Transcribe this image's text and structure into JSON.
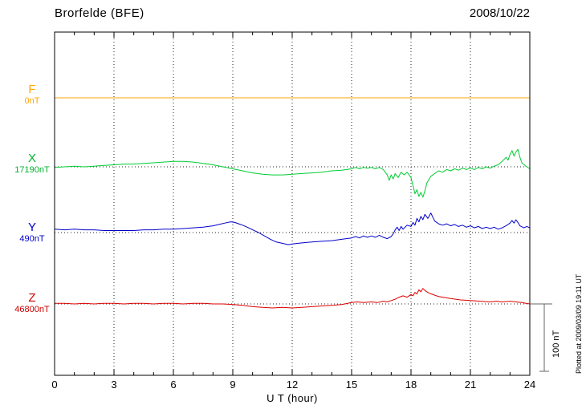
{
  "header": {
    "station": "Brorfelde (BFE)",
    "date": "2008/10/22"
  },
  "footer_note": "Plotted at 2009/03/09 19:11 UT",
  "chart_data": {
    "type": "line",
    "title": "Brorfelde (BFE) magnetogram 2008/10/22",
    "xlabel": "U T (hour)",
    "x_range": [
      0,
      24
    ],
    "x_ticks": [
      "0",
      "3",
      "6",
      "9",
      "12",
      "15",
      "18",
      "21",
      "24"
    ],
    "grid": "dotted vertical every 3 h, dotted horizontal baseline per component",
    "legend_position": "left axis labels",
    "scale_bar": {
      "label": "100 nT",
      "nT": 100
    },
    "series": [
      {
        "name": "F",
        "base_label": "0nT",
        "color": "#FFA500",
        "points": [
          [
            0,
            0
          ],
          [
            24,
            0
          ]
        ]
      },
      {
        "name": "X",
        "base_label": "17190nT",
        "color": "#00CC33",
        "points": [
          [
            0,
            -1
          ],
          [
            0.5,
            0
          ],
          [
            1,
            1
          ],
          [
            1.5,
            0
          ],
          [
            2,
            1
          ],
          [
            2.5,
            2
          ],
          [
            3,
            3
          ],
          [
            3.5,
            4
          ],
          [
            4,
            4
          ],
          [
            4.5,
            5
          ],
          [
            5,
            6
          ],
          [
            5.5,
            7
          ],
          [
            6,
            8
          ],
          [
            6.5,
            8
          ],
          [
            7,
            7
          ],
          [
            7.5,
            5
          ],
          [
            8,
            3
          ],
          [
            8.5,
            0
          ],
          [
            9,
            -3
          ],
          [
            9.5,
            -6
          ],
          [
            10,
            -9
          ],
          [
            10.5,
            -11
          ],
          [
            11,
            -12
          ],
          [
            11.5,
            -12
          ],
          [
            12,
            -11
          ],
          [
            12.5,
            -10
          ],
          [
            13,
            -9
          ],
          [
            13.5,
            -8
          ],
          [
            14,
            -6
          ],
          [
            14.5,
            -5
          ],
          [
            15,
            -3
          ],
          [
            15.2,
            -1
          ],
          [
            15.4,
            -3
          ],
          [
            15.6,
            -1
          ],
          [
            15.8,
            -2
          ],
          [
            16,
            -1
          ],
          [
            16.2,
            -3
          ],
          [
            16.4,
            -1
          ],
          [
            16.6,
            -4
          ],
          [
            16.8,
            -12
          ],
          [
            16.9,
            -20
          ],
          [
            17,
            -12
          ],
          [
            17.1,
            -18
          ],
          [
            17.2,
            -10
          ],
          [
            17.35,
            -16
          ],
          [
            17.5,
            -8
          ],
          [
            17.65,
            -12
          ],
          [
            17.8,
            -8
          ],
          [
            18,
            -16
          ],
          [
            18.1,
            -28
          ],
          [
            18.2,
            -40
          ],
          [
            18.3,
            -34
          ],
          [
            18.4,
            -44
          ],
          [
            18.5,
            -38
          ],
          [
            18.6,
            -45
          ],
          [
            18.7,
            -36
          ],
          [
            18.8,
            -24
          ],
          [
            19,
            -14
          ],
          [
            19.2,
            -10
          ],
          [
            19.4,
            -6
          ],
          [
            19.6,
            -8
          ],
          [
            19.8,
            -4
          ],
          [
            20,
            -6
          ],
          [
            20.2,
            -3
          ],
          [
            20.4,
            -5
          ],
          [
            20.6,
            -2
          ],
          [
            20.8,
            -4
          ],
          [
            21,
            -2
          ],
          [
            21.2,
            -4
          ],
          [
            21.4,
            -1
          ],
          [
            21.6,
            -3
          ],
          [
            21.8,
            0
          ],
          [
            22,
            -2
          ],
          [
            22.2,
            1
          ],
          [
            22.4,
            3
          ],
          [
            22.6,
            8
          ],
          [
            22.8,
            14
          ],
          [
            22.9,
            10
          ],
          [
            23,
            18
          ],
          [
            23.1,
            24
          ],
          [
            23.2,
            16
          ],
          [
            23.3,
            22
          ],
          [
            23.4,
            26
          ],
          [
            23.5,
            14
          ],
          [
            23.6,
            6
          ],
          [
            23.8,
            1
          ],
          [
            24,
            -3
          ]
        ]
      },
      {
        "name": "Y",
        "base_label": "490nT",
        "color": "#0000CC",
        "points": [
          [
            0,
            5
          ],
          [
            0.5,
            4
          ],
          [
            1,
            5
          ],
          [
            1.5,
            4
          ],
          [
            2,
            4
          ],
          [
            2.5,
            3
          ],
          [
            3,
            3
          ],
          [
            3.5,
            3
          ],
          [
            4,
            3
          ],
          [
            4.5,
            4
          ],
          [
            5,
            4
          ],
          [
            5.5,
            5
          ],
          [
            6,
            5
          ],
          [
            6.5,
            6
          ],
          [
            7,
            7
          ],
          [
            7.5,
            8
          ],
          [
            8,
            10
          ],
          [
            8.3,
            12
          ],
          [
            8.6,
            14
          ],
          [
            8.9,
            16
          ],
          [
            9.1,
            15
          ],
          [
            9.3,
            13
          ],
          [
            9.5,
            11
          ],
          [
            9.8,
            7
          ],
          [
            10,
            4
          ],
          [
            10.3,
            0
          ],
          [
            10.6,
            -5
          ],
          [
            10.9,
            -10
          ],
          [
            11.2,
            -14
          ],
          [
            11.5,
            -16
          ],
          [
            11.8,
            -18
          ],
          [
            12,
            -17
          ],
          [
            12.3,
            -16
          ],
          [
            12.6,
            -15
          ],
          [
            13,
            -14
          ],
          [
            13.5,
            -13
          ],
          [
            14,
            -12
          ],
          [
            14.5,
            -10
          ],
          [
            15,
            -8
          ],
          [
            15.2,
            -6
          ],
          [
            15.4,
            -8
          ],
          [
            15.6,
            -5
          ],
          [
            15.8,
            -7
          ],
          [
            16,
            -5
          ],
          [
            16.2,
            -7
          ],
          [
            16.4,
            -4
          ],
          [
            16.6,
            -7
          ],
          [
            16.8,
            -9
          ],
          [
            17,
            -6
          ],
          [
            17.1,
            -2
          ],
          [
            17.2,
            4
          ],
          [
            17.3,
            8
          ],
          [
            17.4,
            3
          ],
          [
            17.5,
            9
          ],
          [
            17.6,
            5
          ],
          [
            17.8,
            11
          ],
          [
            18,
            9
          ],
          [
            18.1,
            15
          ],
          [
            18.2,
            11
          ],
          [
            18.3,
            21
          ],
          [
            18.4,
            16
          ],
          [
            18.5,
            24
          ],
          [
            18.6,
            19
          ],
          [
            18.7,
            27
          ],
          [
            18.85,
            21
          ],
          [
            19,
            29
          ],
          [
            19.1,
            23
          ],
          [
            19.2,
            17
          ],
          [
            19.4,
            13
          ],
          [
            19.6,
            11
          ],
          [
            19.8,
            13
          ],
          [
            20,
            10
          ],
          [
            20.2,
            12
          ],
          [
            20.4,
            9
          ],
          [
            20.6,
            11
          ],
          [
            20.8,
            8
          ],
          [
            21,
            10
          ],
          [
            21.2,
            7
          ],
          [
            21.4,
            9
          ],
          [
            21.6,
            6
          ],
          [
            21.8,
            8
          ],
          [
            22,
            6
          ],
          [
            22.2,
            8
          ],
          [
            22.4,
            5
          ],
          [
            22.6,
            7
          ],
          [
            22.8,
            10
          ],
          [
            23,
            14
          ],
          [
            23.1,
            18
          ],
          [
            23.2,
            14
          ],
          [
            23.3,
            19
          ],
          [
            23.4,
            15
          ],
          [
            23.5,
            10
          ],
          [
            23.7,
            7
          ],
          [
            23.85,
            9
          ],
          [
            24,
            7
          ]
        ]
      },
      {
        "name": "Z",
        "base_label": "46800nT",
        "color": "#DD0000",
        "points": [
          [
            0,
            1
          ],
          [
            0.5,
            1
          ],
          [
            1,
            0
          ],
          [
            1.5,
            1
          ],
          [
            2,
            0
          ],
          [
            2.5,
            1
          ],
          [
            3,
            1
          ],
          [
            3.5,
            0
          ],
          [
            4,
            1
          ],
          [
            4.5,
            1
          ],
          [
            5,
            0
          ],
          [
            5.5,
            1
          ],
          [
            6,
            1
          ],
          [
            6.5,
            0
          ],
          [
            7,
            1
          ],
          [
            7.5,
            1
          ],
          [
            8,
            0
          ],
          [
            8.5,
            0
          ],
          [
            9,
            -1
          ],
          [
            9.5,
            -2
          ],
          [
            10,
            -4
          ],
          [
            10.5,
            -5
          ],
          [
            11,
            -6
          ],
          [
            11.5,
            -5
          ],
          [
            12,
            -6
          ],
          [
            12.5,
            -5
          ],
          [
            13,
            -4
          ],
          [
            13.5,
            -3
          ],
          [
            14,
            -2
          ],
          [
            14.5,
            -1
          ],
          [
            15,
            2
          ],
          [
            15.3,
            3
          ],
          [
            15.6,
            2
          ],
          [
            16,
            3
          ],
          [
            16.3,
            2
          ],
          [
            16.6,
            4
          ],
          [
            16.8,
            3
          ],
          [
            17,
            5
          ],
          [
            17.2,
            7
          ],
          [
            17.4,
            10
          ],
          [
            17.6,
            12
          ],
          [
            17.8,
            10
          ],
          [
            18,
            14
          ],
          [
            18.1,
            12
          ],
          [
            18.2,
            17
          ],
          [
            18.3,
            15
          ],
          [
            18.4,
            21
          ],
          [
            18.5,
            18
          ],
          [
            18.6,
            23
          ],
          [
            18.7,
            20
          ],
          [
            18.85,
            17
          ],
          [
            19,
            15
          ],
          [
            19.2,
            13
          ],
          [
            19.4,
            11
          ],
          [
            19.6,
            10
          ],
          [
            19.8,
            9
          ],
          [
            20,
            8
          ],
          [
            20.5,
            6
          ],
          [
            21,
            5
          ],
          [
            21.5,
            4
          ],
          [
            22,
            3
          ],
          [
            22.3,
            4
          ],
          [
            22.6,
            3
          ],
          [
            23,
            4
          ],
          [
            23.3,
            3
          ],
          [
            23.6,
            2
          ],
          [
            23.8,
            1
          ],
          [
            24,
            0
          ]
        ]
      }
    ]
  }
}
